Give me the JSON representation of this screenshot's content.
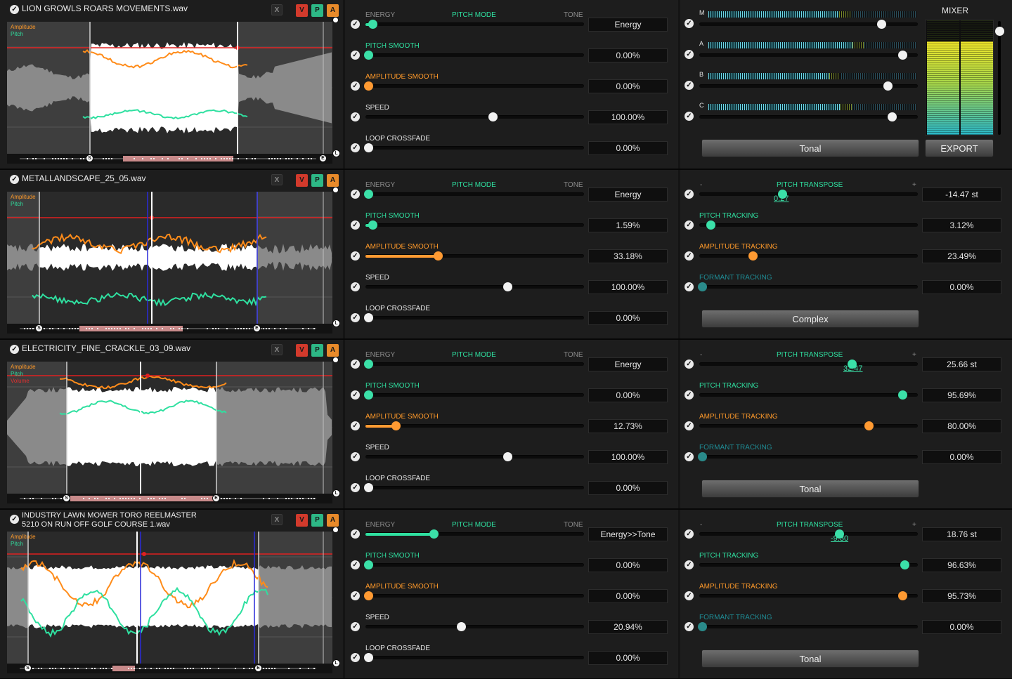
{
  "mixer": {
    "title": "MIXER",
    "export_label": "EXPORT"
  },
  "legend_labels": {
    "amplitude": "Amplitude",
    "pitch": "Pitch",
    "volume": "Volume"
  },
  "markers": {
    "start": "S",
    "end": "E",
    "loop": "L"
  },
  "layer_buttons": {
    "x": "X",
    "v": "V",
    "p": "P",
    "a": "A"
  },
  "labels": {
    "energy": "ENERGY",
    "pitch_mode": "PITCH MODE",
    "tone": "TONE",
    "pitch_smooth": "PITCH SMOOTH",
    "amplitude_smooth": "AMPLITUDE SMOOTH",
    "speed": "SPEED",
    "loop_crossfade": "LOOP CROSSFADE",
    "pitch_transpose": "PITCH TRANSPOSE",
    "pitch_tracking": "PITCH TRACKING",
    "amplitude_tracking": "AMPLITUDE TRACKING",
    "formant_tracking": "FORMANT TRACKING",
    "minus": "-",
    "plus": "+"
  },
  "layers": [
    {
      "filename": "LION GROWLS ROARS MOVEMENTS.wav",
      "legend": [
        "Amplitude",
        "Pitch"
      ],
      "pitch_mode": {
        "value": "Energy",
        "level": 0.02
      },
      "pitch_smooth": {
        "value": "0.00%",
        "level": 0.0
      },
      "amplitude_smooth": {
        "value": "0.00%",
        "level": 0.0
      },
      "speed": {
        "value": "100.00%",
        "level": 0.59
      },
      "loop_crossfade": {
        "value": "0.00%",
        "level": 0.0
      },
      "right_mode": "mixer",
      "channels": [
        {
          "label": "M",
          "level": 0.85,
          "meter": 0.66
        },
        {
          "label": "A",
          "level": 0.95,
          "meter": 0.73
        },
        {
          "label": "B",
          "level": 0.88,
          "meter": 0.61
        },
        {
          "label": "C",
          "level": 0.9,
          "meter": 0.67
        }
      ],
      "mode_button": "Tonal"
    },
    {
      "filename": "METALLANDSCAPE_25_05.wav",
      "legend": [
        "Amplitude",
        "Pitch"
      ],
      "pitch_mode": {
        "value": "Energy",
        "level": 0.0
      },
      "pitch_smooth": {
        "value": "1.59%",
        "level": 0.02
      },
      "amplitude_smooth": {
        "value": "33.18%",
        "level": 0.33
      },
      "speed": {
        "value": "100.00%",
        "level": 0.66
      },
      "loop_crossfade": {
        "value": "0.00%",
        "level": 0.0
      },
      "right_mode": "tracking",
      "pitch_transpose": {
        "value": "-14.47 st",
        "level": 0.38,
        "tip": "0.27"
      },
      "pitch_tracking": {
        "value": "3.12%",
        "level": 0.04
      },
      "amplitude_tracking": {
        "value": "23.49%",
        "level": 0.24
      },
      "formant_tracking": {
        "value": "0.00%",
        "level": 0.0
      },
      "mode_button": "Complex"
    },
    {
      "filename": "ELECTRICITY_FINE_CRACKLE_03_09.wav",
      "legend": [
        "Amplitude",
        "Pitch",
        "Volume"
      ],
      "pitch_mode": {
        "value": "Energy",
        "level": 0.0
      },
      "pitch_smooth": {
        "value": "0.00%",
        "level": 0.0
      },
      "amplitude_smooth": {
        "value": "12.73%",
        "level": 0.13
      },
      "speed": {
        "value": "100.00%",
        "level": 0.66
      },
      "loop_crossfade": {
        "value": "0.00%",
        "level": 0.0
      },
      "right_mode": "tracking",
      "pitch_transpose": {
        "value": "25.66 st",
        "level": 0.71,
        "tip": "32.47"
      },
      "pitch_tracking": {
        "value": "95.69%",
        "level": 0.95
      },
      "amplitude_tracking": {
        "value": "80.00%",
        "level": 0.79
      },
      "formant_tracking": {
        "value": "0.00%",
        "level": 0.0
      },
      "mode_button": "Tonal"
    },
    {
      "filename": "INDUSTRY LAWN MOWER TORO REELMASTER\n5210 ON RUN OFF GOLF COURSE 1.wav",
      "legend": [
        "Amplitude",
        "Pitch"
      ],
      "pitch_mode": {
        "value": "Energy>>Tone",
        "level": 0.31
      },
      "pitch_smooth": {
        "value": "0.00%",
        "level": 0.0
      },
      "amplitude_smooth": {
        "value": "0.00%",
        "level": 0.0
      },
      "speed": {
        "value": "20.94%",
        "level": 0.44
      },
      "loop_crossfade": {
        "value": "0.00%",
        "level": 0.0
      },
      "right_mode": "tracking",
      "pitch_transpose": {
        "value": "18.76 st",
        "level": 0.65,
        "tip": "-9.30"
      },
      "pitch_tracking": {
        "value": "96.63%",
        "level": 0.96
      },
      "amplitude_tracking": {
        "value": "95.73%",
        "level": 0.95
      },
      "formant_tracking": {
        "value": "0.00%",
        "level": 0.0
      },
      "mode_button": "Tonal"
    }
  ]
}
